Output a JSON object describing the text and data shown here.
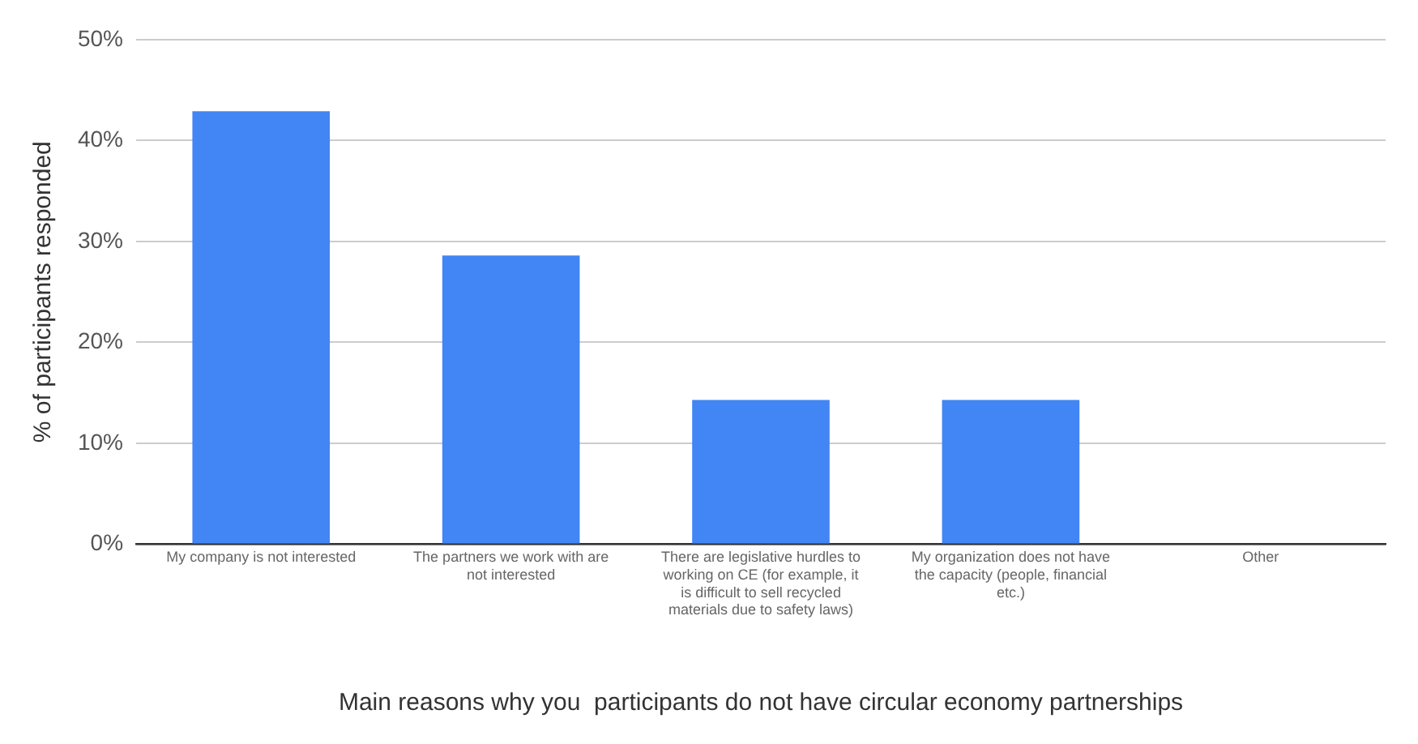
{
  "chart_data": {
    "type": "bar",
    "xlabel": "Main reasons why you  participants do not have circular economy partnerships",
    "ylabel": "% of participants responded",
    "categories": [
      "My company is not interested",
      "The partners we work with are not interested",
      "There are legislative hurdles to working on CE (for example, it is difficult to sell recycled materials due to safety laws)",
      "My organization does not have the capacity (people, financial etc.)",
      "Other"
    ],
    "values": [
      42.9,
      28.6,
      14.3,
      14.3,
      0
    ],
    "color": "#4285f4",
    "ylim": [
      0,
      50
    ],
    "yticks": [
      {
        "value": 0,
        "label": "0%"
      },
      {
        "value": 10,
        "label": "10%"
      },
      {
        "value": 20,
        "label": "20%"
      },
      {
        "value": 30,
        "label": "30%"
      },
      {
        "value": 40,
        "label": "40%"
      },
      {
        "value": 50,
        "label": "50%"
      }
    ],
    "grid": "y",
    "legend": false
  }
}
